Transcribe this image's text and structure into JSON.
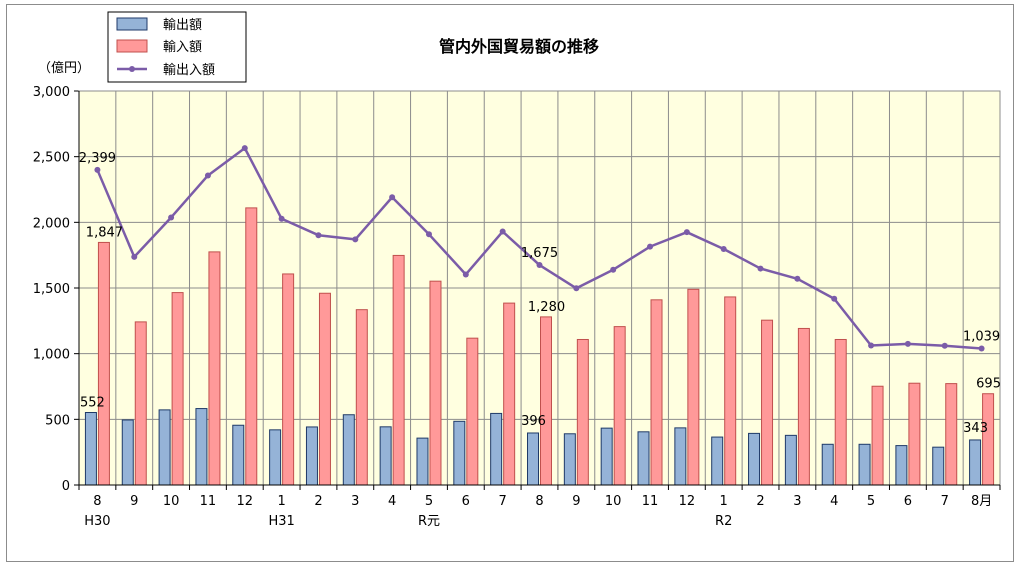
{
  "chart_data": {
    "type": "bar",
    "title": "管内外国貿易額の推移",
    "ylabel": "（億円）",
    "ylim": [
      0,
      3000
    ],
    "yticks": [
      0,
      500,
      1000,
      1500,
      2000,
      2500,
      3000
    ],
    "ytick_labels": [
      "0",
      "500",
      "1,000",
      "1,500",
      "2,000",
      "2,500",
      "3,000"
    ],
    "grid": true,
    "legend_position": "top-left",
    "plot_background": "#ffffe0",
    "categories": [
      "8",
      "9",
      "10",
      "11",
      "12",
      "1",
      "2",
      "3",
      "4",
      "5",
      "6",
      "7",
      "8",
      "9",
      "10",
      "11",
      "12",
      "1",
      "2",
      "3",
      "4",
      "5",
      "6",
      "7",
      "8月"
    ],
    "era_labels": [
      {
        "index": 0,
        "label": "H30"
      },
      {
        "index": 5,
        "label": "H31"
      },
      {
        "index": 9,
        "label": "R元"
      },
      {
        "index": 17,
        "label": "R2"
      }
    ],
    "series": [
      {
        "name": "輸出額",
        "type": "bar",
        "color": "#95b3d7",
        "border": "#1f3a68",
        "values": [
          552,
          495,
          572,
          582,
          455,
          420,
          442,
          535,
          443,
          357,
          485,
          545,
          396,
          390,
          433,
          405,
          435,
          365,
          393,
          378,
          310,
          310,
          300,
          288,
          343
        ]
      },
      {
        "name": "輸入額",
        "type": "bar",
        "color": "#ff9999",
        "border": "#c0504d",
        "values": [
          1847,
          1242,
          1465,
          1775,
          2110,
          1607,
          1460,
          1335,
          1748,
          1552,
          1118,
          1385,
          1280,
          1108,
          1206,
          1410,
          1490,
          1432,
          1255,
          1192,
          1108,
          752,
          775,
          772,
          695
        ]
      },
      {
        "name": "輸出入額",
        "type": "line",
        "color": "#7b5ca8",
        "values": [
          2399,
          1737,
          2037,
          2357,
          2565,
          2027,
          1902,
          1870,
          2191,
          1909,
          1603,
          1930,
          1675,
          1498,
          1639,
          1815,
          1925,
          1797,
          1648,
          1570,
          1418,
          1062,
          1075,
          1060,
          1039
        ]
      }
    ],
    "data_labels": [
      {
        "series": 2,
        "index": 0,
        "text": "2,399"
      },
      {
        "series": 1,
        "index": 0,
        "text": "1,847"
      },
      {
        "series": 0,
        "index": 0,
        "text": "552"
      },
      {
        "series": 2,
        "index": 12,
        "text": "1,675"
      },
      {
        "series": 1,
        "index": 12,
        "text": "1,280"
      },
      {
        "series": 0,
        "index": 12,
        "text": "396"
      },
      {
        "series": 2,
        "index": 24,
        "text": "1,039"
      },
      {
        "series": 1,
        "index": 24,
        "text": "695"
      },
      {
        "series": 0,
        "index": 24,
        "text": "343"
      }
    ]
  }
}
